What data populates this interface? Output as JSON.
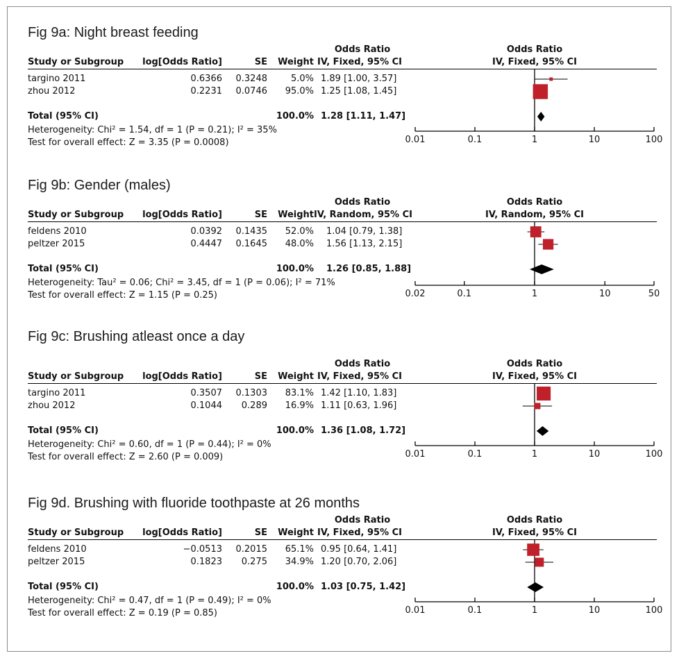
{
  "chart_data": [
    {
      "type": "forest",
      "title": "Fig 9a: Night breast feeding",
      "headers": {
        "study": "Study or Subgroup",
        "log": "log[Odds Ratio]",
        "se": "SE",
        "weight": "Weight",
        "or_top": "Odds Ratio",
        "or_method": "IV, Fixed, 95% CI",
        "plot_top": "Odds Ratio",
        "plot_method": "IV, Fixed, 95% CI"
      },
      "studies": [
        {
          "name": "targino 2011",
          "log": "0.6366",
          "se": "0.3248",
          "weight": "5.0%",
          "ci": "1.89 [1.00, 3.57]",
          "or": 1.89,
          "lo": 1.0,
          "hi": 3.57,
          "w": 5.0
        },
        {
          "name": "zhou 2012",
          "log": "0.2231",
          "se": "0.0746",
          "weight": "95.0%",
          "ci": "1.25 [1.08, 1.45]",
          "or": 1.25,
          "lo": 1.08,
          "hi": 1.45,
          "w": 95.0
        }
      ],
      "total": {
        "label": "Total (95% CI)",
        "weight": "100.0%",
        "ci": "1.28 [1.11, 1.47]",
        "or": 1.28,
        "lo": 1.11,
        "hi": 1.47
      },
      "heterogeneity": "Heterogeneity: Chi² = 1.54, df = 1 (P = 0.21); I² = 35%",
      "overall": "Test for overall effect: Z = 3.35 (P = 0.0008)",
      "xscale": "log",
      "xlim": [
        0.01,
        100
      ],
      "ticks": [
        {
          "v": 0.01,
          "label": "0.01"
        },
        {
          "v": 0.1,
          "label": "0.1"
        },
        {
          "v": 1,
          "label": "1"
        },
        {
          "v": 10,
          "label": "10"
        },
        {
          "v": 100,
          "label": "100"
        }
      ]
    },
    {
      "type": "forest",
      "title": "Fig 9b: Gender (males)",
      "headers": {
        "study": "Study or Subgroup",
        "log": "log[Odds Ratio]",
        "se": "SE",
        "weight": "Weight",
        "or_top": "Odds Ratio",
        "or_method": "IV, Random, 95% CI",
        "plot_top": "Odds Ratio",
        "plot_method": "IV, Random, 95% CI"
      },
      "studies": [
        {
          "name": "feldens 2010",
          "log": "0.0392",
          "se": "0.1435",
          "weight": "52.0%",
          "ci": "1.04 [0.79, 1.38]",
          "or": 1.04,
          "lo": 0.79,
          "hi": 1.38,
          "w": 52.0
        },
        {
          "name": "peltzer 2015",
          "log": "0.4447",
          "se": "0.1645",
          "weight": "48.0%",
          "ci": "1.56 [1.13, 2.15]",
          "or": 1.56,
          "lo": 1.13,
          "hi": 2.15,
          "w": 48.0
        }
      ],
      "total": {
        "label": "Total (95% CI)",
        "weight": "100.0%",
        "ci": "1.26 [0.85, 1.88]",
        "or": 1.26,
        "lo": 0.85,
        "hi": 1.88
      },
      "heterogeneity": "Heterogeneity: Tau² = 0.06; Chi² = 3.45, df = 1 (P = 0.06); I² = 71%",
      "overall": "Test for overall effect: Z = 1.15 (P = 0.25)",
      "xscale": "log",
      "xlim": [
        0.02,
        50
      ],
      "ticks": [
        {
          "v": 0.02,
          "label": "0.02"
        },
        {
          "v": 0.1,
          "label": "0.1"
        },
        {
          "v": 1,
          "label": "1"
        },
        {
          "v": 10,
          "label": "10"
        },
        {
          "v": 50,
          "label": "50"
        }
      ]
    },
    {
      "type": "forest",
      "title": "Fig 9c: Brushing atleast once a day",
      "headers": {
        "study": "Study or Subgroup",
        "log": "log[Odds Ratio]",
        "se": "SE",
        "weight": "Weight",
        "or_top": "Odds Ratio",
        "or_method": "IV, Fixed, 95% CI",
        "plot_top": "Odds Ratio",
        "plot_method": "IV, Fixed, 95% CI"
      },
      "studies": [
        {
          "name": "targino 2011",
          "log": "0.3507",
          "se": "0.1303",
          "weight": "83.1%",
          "ci": "1.42 [1.10, 1.83]",
          "or": 1.42,
          "lo": 1.1,
          "hi": 1.83,
          "w": 83.1
        },
        {
          "name": "zhou 2012",
          "log": "0.1044",
          "se": "0.289",
          "weight": "16.9%",
          "ci": "1.11 [0.63, 1.96]",
          "or": 1.11,
          "lo": 0.63,
          "hi": 1.96,
          "w": 16.9
        }
      ],
      "total": {
        "label": "Total (95% CI)",
        "weight": "100.0%",
        "ci": "1.36 [1.08, 1.72]",
        "or": 1.36,
        "lo": 1.08,
        "hi": 1.72
      },
      "heterogeneity": "Heterogeneity: Chi² = 0.60, df = 1 (P = 0.44); I² = 0%",
      "overall": "Test for overall effect: Z = 2.60 (P = 0.009)",
      "xscale": "log",
      "xlim": [
        0.01,
        100
      ],
      "ticks": [
        {
          "v": 0.01,
          "label": "0.01"
        },
        {
          "v": 0.1,
          "label": "0.1"
        },
        {
          "v": 1,
          "label": "1"
        },
        {
          "v": 10,
          "label": "10"
        },
        {
          "v": 100,
          "label": "100"
        }
      ]
    },
    {
      "type": "forest",
      "title": "Fig 9d. Brushing with fluoride toothpaste at 26 months",
      "headers": {
        "study": "Study or Subgroup",
        "log": "log[Odds Ratio]",
        "se": "SE",
        "weight": "Weight",
        "or_top": "Odds Ratio",
        "or_method": "IV, Fixed, 95% CI",
        "plot_top": "Odds Ratio",
        "plot_method": "IV, Fixed, 95% CI"
      },
      "studies": [
        {
          "name": "feldens 2010",
          "log": "−0.0513",
          "se": "0.2015",
          "weight": "65.1%",
          "ci": "0.95 [0.64, 1.41]",
          "or": 0.95,
          "lo": 0.64,
          "hi": 1.41,
          "w": 65.1
        },
        {
          "name": "peltzer 2015",
          "log": "0.1823",
          "se": "0.275",
          "weight": "34.9%",
          "ci": "1.20 [0.70, 2.06]",
          "or": 1.2,
          "lo": 0.7,
          "hi": 2.06,
          "w": 34.9
        }
      ],
      "total": {
        "label": "Total (95% CI)",
        "weight": "100.0%",
        "ci": "1.03 [0.75, 1.42]",
        "or": 1.03,
        "lo": 0.75,
        "hi": 1.42
      },
      "heterogeneity": "Heterogeneity: Chi² = 0.47, df = 1 (P = 0.49); I² = 0%",
      "overall": "Test for overall effect: Z = 0.19 (P = 0.85)",
      "xscale": "log",
      "xlim": [
        0.01,
        100
      ],
      "ticks": [
        {
          "v": 0.01,
          "label": "0.01"
        },
        {
          "v": 0.1,
          "label": "0.1"
        },
        {
          "v": 1,
          "label": "1"
        },
        {
          "v": 10,
          "label": "10"
        },
        {
          "v": 100,
          "label": "100"
        }
      ]
    }
  ],
  "colors": {
    "marker": "#c0202a",
    "line": "#000000",
    "diamond": "#000000"
  }
}
